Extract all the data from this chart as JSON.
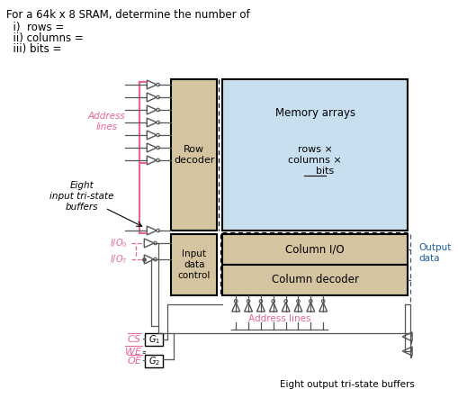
{
  "title_text": "For a 64k x 8 SRAM, determine the number of",
  "sub_items": [
    "  i)  rows =",
    "  ii) columns =",
    "  iii) bits ="
  ],
  "bg_color": "#ffffff",
  "pink_color": "#e8649a",
  "tan_color": "#d4c4a0",
  "blue_color": "#c8dff0",
  "text_color": "#000000",
  "dark_blue_text": "#1a3a5c",
  "output_data_color": "#2060a0"
}
